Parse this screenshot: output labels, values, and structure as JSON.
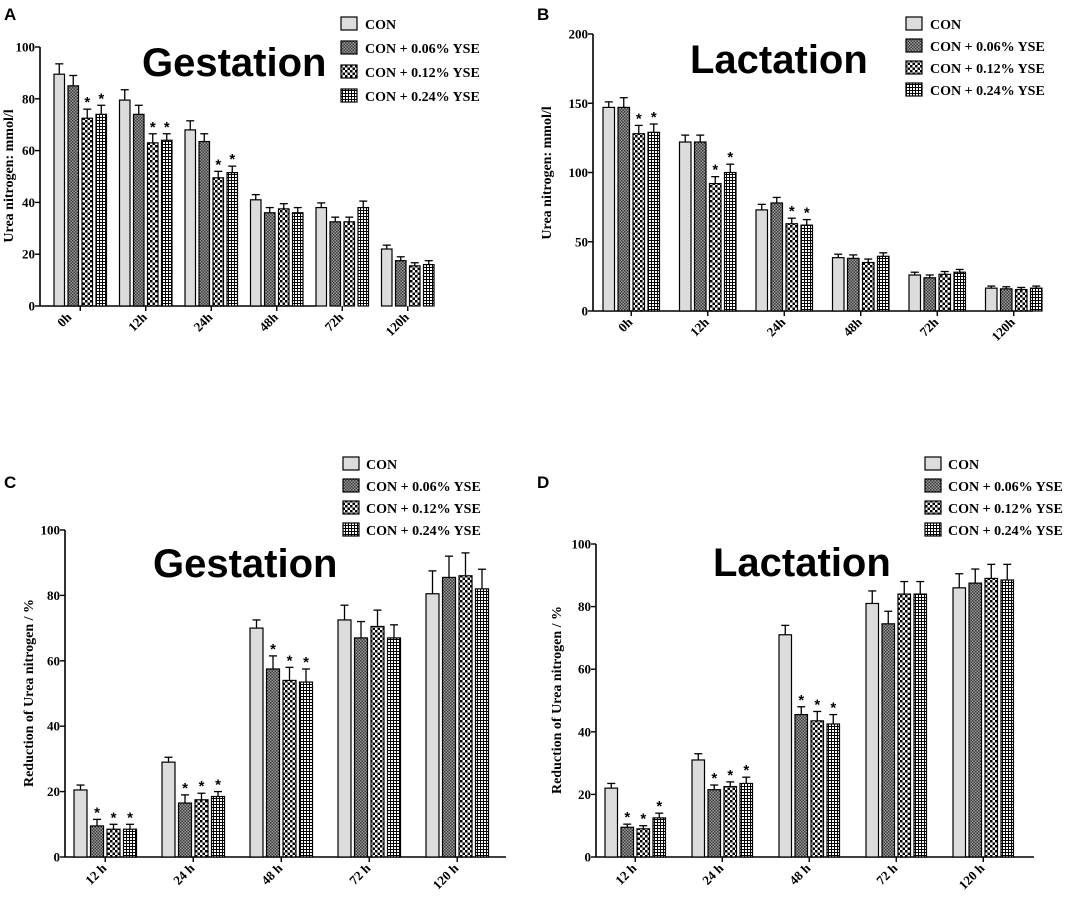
{
  "chart_data": [
    {
      "panel": "A",
      "type": "bar",
      "title": "Gestation",
      "ylabel": "Urea nitrogen: mmol/l",
      "xlabel": "",
      "ylim": [
        0,
        100
      ],
      "yticks": [
        "0",
        "20",
        "40",
        "60",
        "80",
        "100"
      ],
      "categories": [
        "0h",
        "12h",
        "24h",
        "48h",
        "72h",
        "120h"
      ],
      "series": [
        {
          "name": "CON",
          "values": [
            89.5,
            79.5,
            68,
            41,
            38,
            22
          ],
          "errors": [
            4,
            4,
            3.5,
            2,
            1.8,
            1.5
          ],
          "sig": [
            false,
            false,
            false,
            false,
            false,
            false
          ]
        },
        {
          "name": "CON + 0.06% YSE",
          "values": [
            85,
            74,
            63.5,
            36,
            32.5,
            17.5
          ],
          "errors": [
            4,
            3.5,
            3,
            2,
            1.8,
            1.5
          ],
          "sig": [
            false,
            false,
            false,
            false,
            false,
            false
          ]
        },
        {
          "name": "CON + 0.12% YSE",
          "values": [
            72.5,
            63,
            49.5,
            37.5,
            32.5,
            15.5
          ],
          "errors": [
            3.5,
            3.5,
            2.5,
            2,
            1.8,
            1.2
          ],
          "sig": [
            true,
            true,
            true,
            false,
            false,
            false
          ]
        },
        {
          "name": "CON + 0.24% YSE",
          "values": [
            74,
            64,
            51.5,
            36,
            38,
            16
          ],
          "errors": [
            3.5,
            2.5,
            2.5,
            2,
            2.5,
            1.5
          ],
          "sig": [
            true,
            true,
            true,
            false,
            false,
            false
          ]
        }
      ]
    },
    {
      "panel": "B",
      "type": "bar",
      "title": "Lactation",
      "ylabel": "Urea nitrogen: mmol/l",
      "xlabel": "",
      "ylim": [
        0,
        200
      ],
      "yticks": [
        "0",
        "50",
        "100",
        "150",
        "200"
      ],
      "categories": [
        "0h",
        "12h",
        "24h",
        "48h",
        "72h",
        "120h"
      ],
      "series": [
        {
          "name": "CON",
          "values": [
            147,
            122,
            73,
            38.5,
            26,
            16.5
          ],
          "errors": [
            4,
            5,
            4,
            2.5,
            2,
            1.5
          ],
          "sig": [
            false,
            false,
            false,
            false,
            false,
            false
          ]
        },
        {
          "name": "CON + 0.06% YSE",
          "values": [
            147,
            122,
            78,
            38,
            24,
            16
          ],
          "errors": [
            7,
            5,
            4,
            2.5,
            2,
            1.5
          ],
          "sig": [
            false,
            false,
            false,
            false,
            false,
            false
          ]
        },
        {
          "name": "CON + 0.12% YSE",
          "values": [
            128,
            92,
            63,
            35,
            26.5,
            15.5
          ],
          "errors": [
            6,
            5,
            4,
            2.5,
            2,
            1.5
          ],
          "sig": [
            true,
            true,
            true,
            false,
            false,
            false
          ]
        },
        {
          "name": "CON + 0.24% YSE",
          "values": [
            129,
            100,
            62,
            39.5,
            28,
            16.5
          ],
          "errors": [
            6,
            6,
            4,
            2.5,
            2,
            1.5
          ],
          "sig": [
            true,
            true,
            true,
            false,
            false,
            false
          ]
        }
      ]
    },
    {
      "panel": "C",
      "type": "bar",
      "title": "Gestation",
      "ylabel": "Reduction of Urea nitrogen / %",
      "xlabel": "",
      "ylim": [
        0,
        100
      ],
      "yticks": [
        "0",
        "20",
        "40",
        "60",
        "80",
        "100"
      ],
      "categories": [
        "12 h",
        "24 h",
        "48 h",
        "72 h",
        "120 h"
      ],
      "series": [
        {
          "name": "CON",
          "values": [
            20.5,
            29,
            70,
            72.5,
            80.5
          ],
          "errors": [
            1.5,
            1.5,
            2.5,
            4.5,
            7
          ],
          "sig": [
            false,
            false,
            false,
            false,
            false
          ]
        },
        {
          "name": "CON + 0.06% YSE",
          "values": [
            9.5,
            16.5,
            57.5,
            67,
            85.5
          ],
          "errors": [
            2,
            2.5,
            4,
            5,
            6.5
          ],
          "sig": [
            true,
            true,
            true,
            false,
            false
          ]
        },
        {
          "name": "CON + 0.12% YSE",
          "values": [
            8.5,
            17.5,
            54,
            70.5,
            86
          ],
          "errors": [
            1.5,
            2,
            4,
            5,
            7
          ],
          "sig": [
            true,
            true,
            true,
            false,
            false
          ]
        },
        {
          "name": "CON + 0.24% YSE",
          "values": [
            8.5,
            18.5,
            53.5,
            67,
            82
          ],
          "errors": [
            1.5,
            1.5,
            4,
            4,
            6
          ],
          "sig": [
            true,
            true,
            true,
            false,
            false
          ]
        }
      ]
    },
    {
      "panel": "D",
      "type": "bar",
      "title": "Lactation",
      "ylabel": "Reduction of Urea nitrogen / %",
      "xlabel": "",
      "ylim": [
        0,
        100
      ],
      "yticks": [
        "0",
        "20",
        "40",
        "60",
        "80",
        "100"
      ],
      "categories": [
        "12 h",
        "24 h",
        "48 h",
        "72 h",
        "120 h"
      ],
      "series": [
        {
          "name": "CON",
          "values": [
            22,
            31,
            71,
            81,
            86
          ],
          "errors": [
            1.5,
            2,
            3,
            4,
            4.5
          ],
          "sig": [
            false,
            false,
            false,
            false,
            false
          ]
        },
        {
          "name": "CON + 0.06% YSE",
          "values": [
            9.5,
            21.5,
            45.5,
            74.5,
            87.5
          ],
          "errors": [
            1,
            1.5,
            2.5,
            4,
            4.5
          ],
          "sig": [
            true,
            true,
            true,
            false,
            false
          ]
        },
        {
          "name": "CON + 0.12% YSE",
          "values": [
            9,
            22.5,
            43.5,
            84,
            89
          ],
          "errors": [
            1,
            1.5,
            3,
            4,
            4.5
          ],
          "sig": [
            true,
            true,
            true,
            false,
            false
          ]
        },
        {
          "name": "CON + 0.24% YSE",
          "values": [
            12.5,
            23.5,
            42.5,
            84,
            88.5
          ],
          "errors": [
            1.5,
            2,
            3,
            4,
            5
          ],
          "sig": [
            true,
            true,
            true,
            false,
            false
          ]
        }
      ]
    }
  ],
  "significance_marker": "*",
  "colors": {
    "bar_stroke": "#000000",
    "fill_con": "#dcdcdc",
    "fill_dots": "#6e6e6e",
    "fill_checker": "#000000",
    "fill_grid": "#000000"
  }
}
